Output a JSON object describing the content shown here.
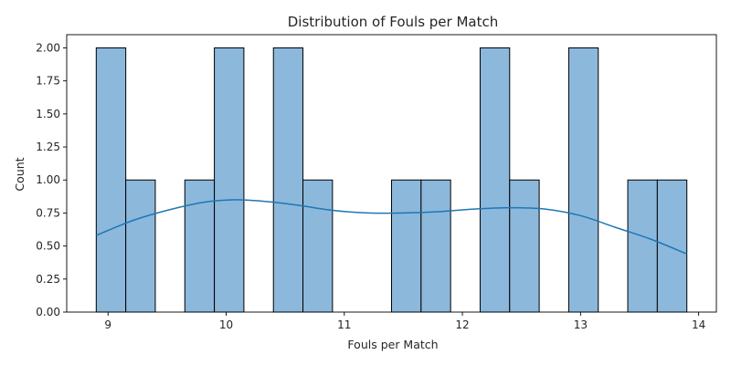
{
  "chart_data": {
    "type": "bar",
    "title": "Distribution of Fouls per Match",
    "xlabel": "Fouls per Match",
    "ylabel": "Count",
    "xlim": [
      8.65,
      14.15
    ],
    "ylim": [
      0,
      2.1
    ],
    "xticks": [
      9,
      10,
      11,
      12,
      13,
      14
    ],
    "yticks": [
      "0.00",
      "0.25",
      "0.50",
      "0.75",
      "1.00",
      "1.25",
      "1.50",
      "1.75",
      "2.00"
    ],
    "bins": [
      {
        "x0": 8.9,
        "x1": 9.15,
        "count": 2
      },
      {
        "x0": 9.15,
        "x1": 9.4,
        "count": 1
      },
      {
        "x0": 9.4,
        "x1": 9.65,
        "count": 0
      },
      {
        "x0": 9.65,
        "x1": 9.9,
        "count": 1
      },
      {
        "x0": 9.9,
        "x1": 10.15,
        "count": 2
      },
      {
        "x0": 10.15,
        "x1": 10.4,
        "count": 0
      },
      {
        "x0": 10.4,
        "x1": 10.65,
        "count": 2
      },
      {
        "x0": 10.65,
        "x1": 10.9,
        "count": 1
      },
      {
        "x0": 10.9,
        "x1": 11.15,
        "count": 0
      },
      {
        "x0": 11.15,
        "x1": 11.4,
        "count": 0
      },
      {
        "x0": 11.4,
        "x1": 11.65,
        "count": 1
      },
      {
        "x0": 11.65,
        "x1": 11.9,
        "count": 1
      },
      {
        "x0": 11.9,
        "x1": 12.15,
        "count": 0
      },
      {
        "x0": 12.15,
        "x1": 12.4,
        "count": 2
      },
      {
        "x0": 12.4,
        "x1": 12.65,
        "count": 1
      },
      {
        "x0": 12.65,
        "x1": 12.9,
        "count": 0
      },
      {
        "x0": 12.9,
        "x1": 13.15,
        "count": 2
      },
      {
        "x0": 13.15,
        "x1": 13.4,
        "count": 0
      },
      {
        "x0": 13.4,
        "x1": 13.65,
        "count": 1
      },
      {
        "x0": 13.65,
        "x1": 13.9,
        "count": 1
      }
    ],
    "kde": {
      "x": [
        8.9,
        9.2,
        9.5,
        9.8,
        10.05,
        10.3,
        10.6,
        10.9,
        11.2,
        11.5,
        11.8,
        12.1,
        12.4,
        12.7,
        13.0,
        13.3,
        13.6,
        13.9
      ],
      "y": [
        0.58,
        0.69,
        0.77,
        0.83,
        0.85,
        0.84,
        0.81,
        0.77,
        0.75,
        0.75,
        0.76,
        0.78,
        0.79,
        0.78,
        0.73,
        0.64,
        0.55,
        0.44
      ]
    },
    "grid": false,
    "colors": {
      "bar_fill": "#8cb8dc",
      "bar_edge": "#000000",
      "kde_line": "#1f77b4",
      "axis": "#000000",
      "text": "#262626"
    }
  }
}
